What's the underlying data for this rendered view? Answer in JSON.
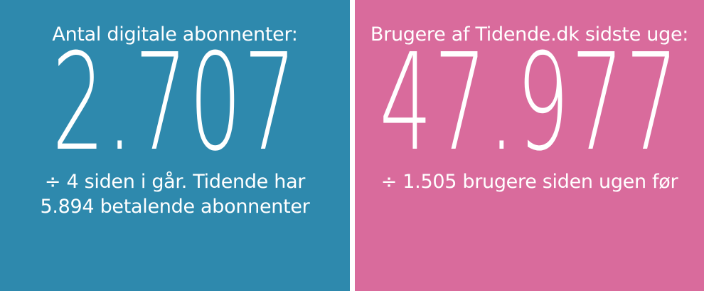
{
  "colors": {
    "left_panel_bg": "#2e89ad",
    "right_panel_bg": "#d96b9c",
    "text": "#ffffff",
    "divider": "#ffffff"
  },
  "panels": [
    {
      "heading": "Antal digitale abonnenter:",
      "value": "2.707",
      "sub_lines": [
        "÷ 4 siden i går. Tidende har",
        "5.894 betalende abonnenter"
      ]
    },
    {
      "heading": "Brugere af Tidende.dk sidste uge:",
      "value": "47.977",
      "sub_lines": [
        "÷ 1.505 brugere siden ugen før"
      ]
    }
  ]
}
